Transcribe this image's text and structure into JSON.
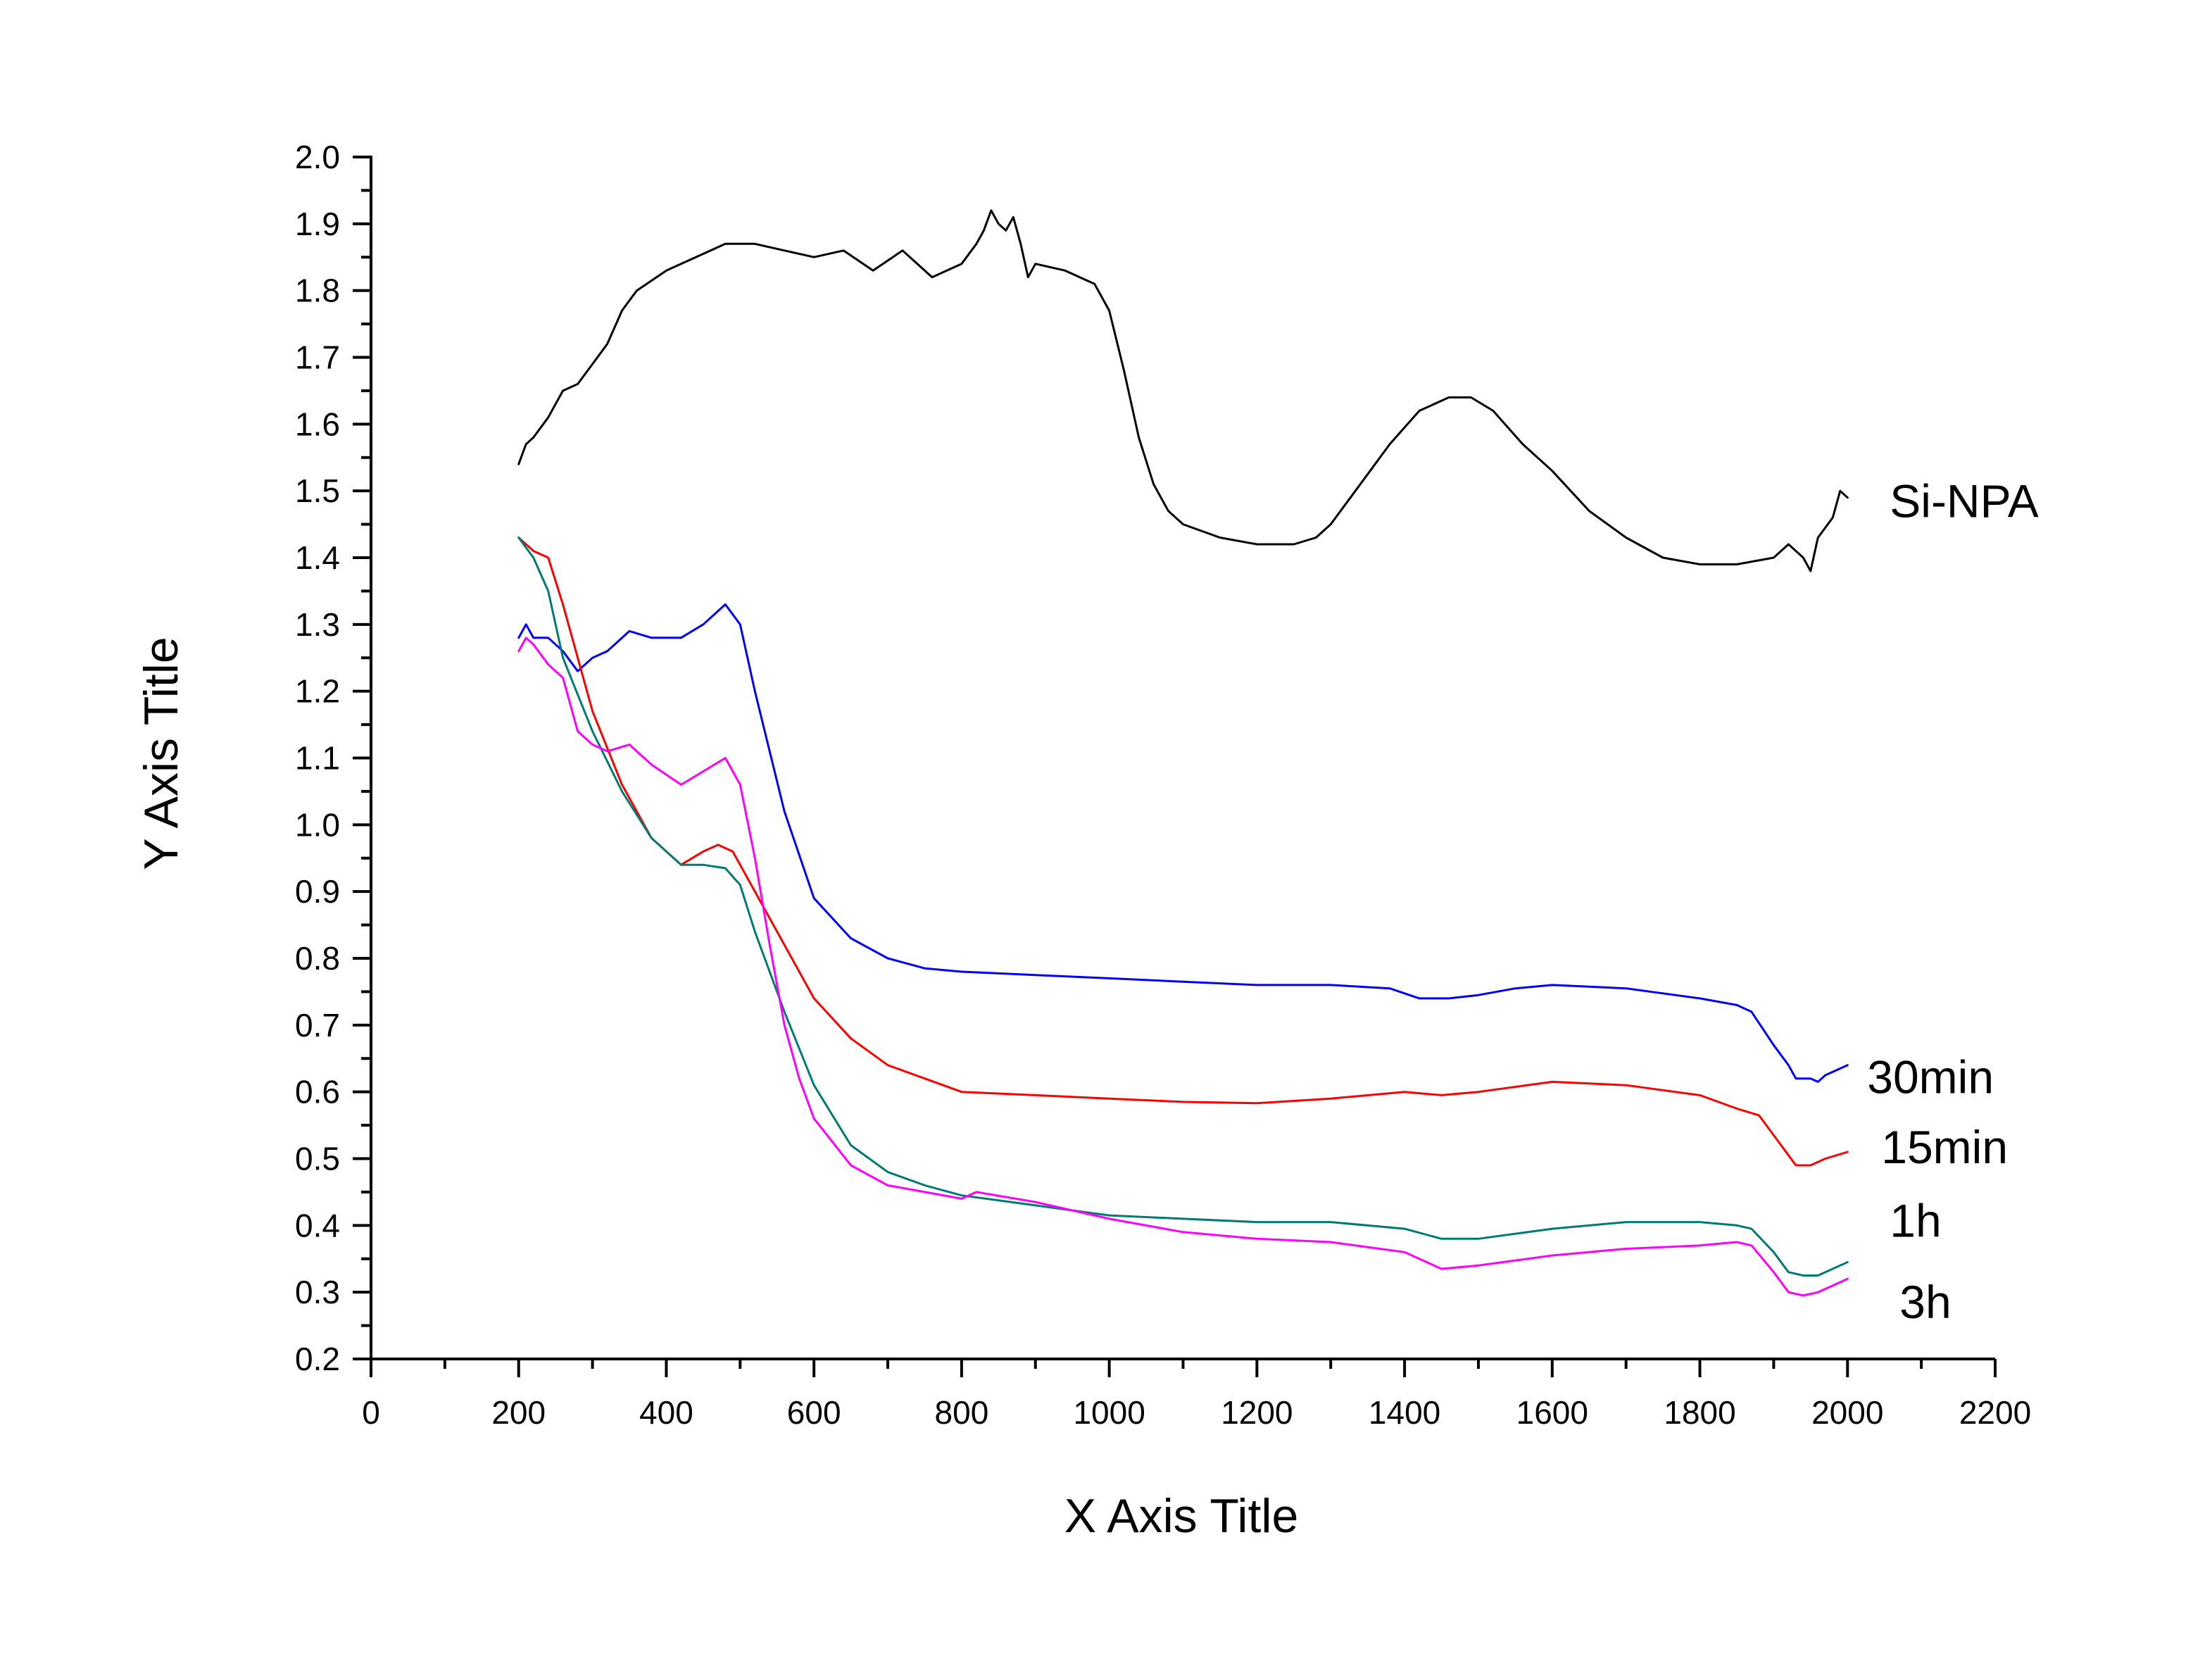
{
  "chart_data": {
    "type": "line",
    "title": "",
    "xlabel": "X Axis Title",
    "ylabel": "Y Axis Title",
    "xlim": [
      0,
      2200
    ],
    "ylim": [
      0.2,
      2.0
    ],
    "x_ticks": [
      0,
      200,
      400,
      600,
      800,
      1000,
      1200,
      1400,
      1600,
      1800,
      2000,
      2200
    ],
    "y_ticks": [
      0.2,
      0.3,
      0.4,
      0.5,
      0.6,
      0.7,
      0.8,
      0.9,
      1.0,
      1.1,
      1.2,
      1.3,
      1.4,
      1.5,
      1.6,
      1.7,
      1.8,
      1.9,
      2.0
    ],
    "grid": false,
    "legend": "none; series labelled inline at right end of curves",
    "series": [
      {
        "name": "Si-NPA",
        "color": "#000000",
        "x": [
          200,
          210,
          220,
          240,
          260,
          280,
          300,
          320,
          340,
          360,
          400,
          440,
          480,
          520,
          560,
          600,
          640,
          680,
          720,
          760,
          800,
          820,
          830,
          840,
          850,
          860,
          870,
          880,
          890,
          900,
          940,
          980,
          1000,
          1020,
          1040,
          1060,
          1080,
          1100,
          1150,
          1200,
          1250,
          1280,
          1300,
          1340,
          1380,
          1420,
          1460,
          1490,
          1520,
          1560,
          1600,
          1650,
          1700,
          1750,
          1800,
          1850,
          1900,
          1920,
          1940,
          1950,
          1960,
          1980,
          1990,
          2000
        ],
        "y": [
          1.54,
          1.57,
          1.58,
          1.61,
          1.65,
          1.66,
          1.69,
          1.72,
          1.77,
          1.8,
          1.83,
          1.85,
          1.87,
          1.87,
          1.86,
          1.85,
          1.86,
          1.83,
          1.86,
          1.82,
          1.84,
          1.87,
          1.89,
          1.92,
          1.9,
          1.89,
          1.91,
          1.87,
          1.82,
          1.84,
          1.83,
          1.81,
          1.77,
          1.68,
          1.58,
          1.51,
          1.47,
          1.45,
          1.43,
          1.42,
          1.42,
          1.43,
          1.45,
          1.51,
          1.57,
          1.62,
          1.64,
          1.64,
          1.62,
          1.57,
          1.53,
          1.47,
          1.43,
          1.4,
          1.39,
          1.39,
          1.4,
          1.42,
          1.4,
          1.38,
          1.43,
          1.46,
          1.5,
          1.49
        ]
      },
      {
        "name": "30min",
        "color": "#0000ff",
        "x": [
          200,
          210,
          220,
          240,
          260,
          280,
          300,
          320,
          350,
          380,
          420,
          450,
          480,
          500,
          520,
          560,
          600,
          650,
          700,
          750,
          800,
          900,
          1000,
          1100,
          1200,
          1300,
          1380,
          1420,
          1460,
          1500,
          1550,
          1600,
          1700,
          1800,
          1850,
          1870,
          1900,
          1920,
          1930,
          1950,
          1960,
          1970,
          1990,
          2000
        ],
        "y": [
          1.28,
          1.3,
          1.28,
          1.28,
          1.26,
          1.23,
          1.25,
          1.26,
          1.29,
          1.28,
          1.28,
          1.3,
          1.33,
          1.3,
          1.2,
          1.02,
          0.89,
          0.83,
          0.8,
          0.785,
          0.78,
          0.775,
          0.77,
          0.765,
          0.76,
          0.76,
          0.755,
          0.74,
          0.74,
          0.745,
          0.755,
          0.76,
          0.755,
          0.74,
          0.73,
          0.72,
          0.67,
          0.64,
          0.62,
          0.62,
          0.615,
          0.625,
          0.635,
          0.64
        ]
      },
      {
        "name": "15min",
        "color": "#ff0000",
        "x": [
          200,
          220,
          240,
          260,
          300,
          340,
          380,
          420,
          450,
          470,
          490,
          520,
          560,
          600,
          650,
          700,
          750,
          800,
          900,
          1000,
          1100,
          1200,
          1300,
          1400,
          1450,
          1500,
          1600,
          1700,
          1800,
          1850,
          1880,
          1910,
          1930,
          1950,
          1970,
          2000
        ],
        "y": [
          1.43,
          1.41,
          1.4,
          1.33,
          1.17,
          1.06,
          0.98,
          0.94,
          0.96,
          0.97,
          0.96,
          0.9,
          0.82,
          0.74,
          0.68,
          0.64,
          0.62,
          0.6,
          0.595,
          0.59,
          0.585,
          0.583,
          0.59,
          0.6,
          0.595,
          0.6,
          0.615,
          0.61,
          0.595,
          0.575,
          0.565,
          0.52,
          0.49,
          0.49,
          0.5,
          0.51
        ]
      },
      {
        "name": "1h",
        "color": "#007b74",
        "x": [
          200,
          220,
          240,
          260,
          300,
          340,
          380,
          420,
          450,
          480,
          500,
          520,
          560,
          600,
          650,
          700,
          750,
          800,
          900,
          1000,
          1100,
          1200,
          1300,
          1400,
          1450,
          1500,
          1600,
          1700,
          1800,
          1850,
          1870,
          1900,
          1920,
          1940,
          1960,
          1980,
          2000
        ],
        "y": [
          1.43,
          1.4,
          1.35,
          1.25,
          1.14,
          1.05,
          0.98,
          0.94,
          0.94,
          0.935,
          0.91,
          0.84,
          0.72,
          0.61,
          0.52,
          0.48,
          0.46,
          0.445,
          0.43,
          0.415,
          0.41,
          0.405,
          0.405,
          0.395,
          0.38,
          0.38,
          0.395,
          0.405,
          0.405,
          0.4,
          0.395,
          0.36,
          0.33,
          0.325,
          0.325,
          0.335,
          0.345
        ]
      },
      {
        "name": "3h",
        "color": "#ff00ff",
        "x": [
          200,
          210,
          220,
          240,
          260,
          280,
          300,
          320,
          350,
          380,
          420,
          450,
          480,
          500,
          520,
          540,
          560,
          580,
          600,
          650,
          700,
          750,
          800,
          820,
          900,
          1000,
          1100,
          1200,
          1300,
          1400,
          1450,
          1500,
          1600,
          1700,
          1800,
          1850,
          1870,
          1900,
          1920,
          1940,
          1960,
          1980,
          2000
        ],
        "y": [
          1.26,
          1.28,
          1.27,
          1.24,
          1.22,
          1.14,
          1.12,
          1.11,
          1.12,
          1.09,
          1.06,
          1.08,
          1.1,
          1.06,
          0.95,
          0.82,
          0.7,
          0.62,
          0.56,
          0.49,
          0.46,
          0.45,
          0.44,
          0.45,
          0.435,
          0.41,
          0.39,
          0.38,
          0.375,
          0.36,
          0.335,
          0.34,
          0.355,
          0.365,
          0.37,
          0.375,
          0.37,
          0.33,
          0.3,
          0.295,
          0.3,
          0.31,
          0.32
        ]
      }
    ]
  }
}
